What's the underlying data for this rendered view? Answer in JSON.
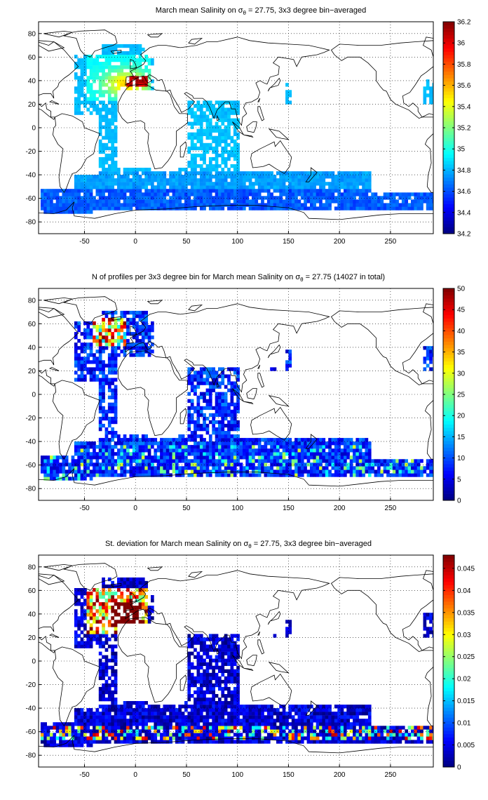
{
  "figure": {
    "panels": [
      {
        "id": "salinity",
        "title_pre": "March mean Salinity on ",
        "title_sigma": "σ",
        "title_sub": "θ",
        "title_post": " = 27.75, 3x3 degree bin−averaged",
        "colorbar_ticks": [
          "34.2",
          "34.4",
          "34.6",
          "34.8",
          "35",
          "35.2",
          "35.4",
          "35.6",
          "35.8",
          "36",
          "36.2"
        ],
        "colorbar_range": [
          34.2,
          36.2
        ]
      },
      {
        "id": "profiles",
        "title_pre": "N of profiles per 3x3 degree bin for March mean Salinity on ",
        "title_sigma": "σ",
        "title_sub": "θ",
        "title_post": " = 27.75 (14027 in total)",
        "colorbar_ticks": [
          "0",
          "5",
          "10",
          "15",
          "20",
          "25",
          "30",
          "35",
          "40",
          "45",
          "50"
        ],
        "colorbar_range": [
          0,
          50
        ]
      },
      {
        "id": "stdev",
        "title_pre": "St. deviation for March mean Salinity on ",
        "title_sigma": "σ",
        "title_sub": "θ",
        "title_post": " = 27.75, 3x3 degree bin−averaged",
        "colorbar_ticks": [
          "0",
          "0.005",
          "0.01",
          "0.015",
          "0.02",
          "0.025",
          "0.03",
          "0.035",
          "0.04",
          "0.045"
        ],
        "colorbar_range": [
          0,
          0.048
        ]
      }
    ],
    "x_ticks": [
      "-50",
      "0",
      "50",
      "100",
      "150",
      "200",
      "250"
    ],
    "x_tick_values": [
      -50,
      0,
      50,
      100,
      150,
      200,
      250
    ],
    "y_ticks": [
      "80",
      "60",
      "40",
      "20",
      "0",
      "-20",
      "-40",
      "-60",
      "-80"
    ],
    "y_tick_values": [
      80,
      60,
      40,
      20,
      0,
      -20,
      -40,
      -60,
      -80
    ],
    "xlim": [
      -95,
      292
    ],
    "ylim": [
      -90,
      90
    ],
    "grid": "dotted",
    "colormap": "jet",
    "coastline_color": "#000000"
  }
}
